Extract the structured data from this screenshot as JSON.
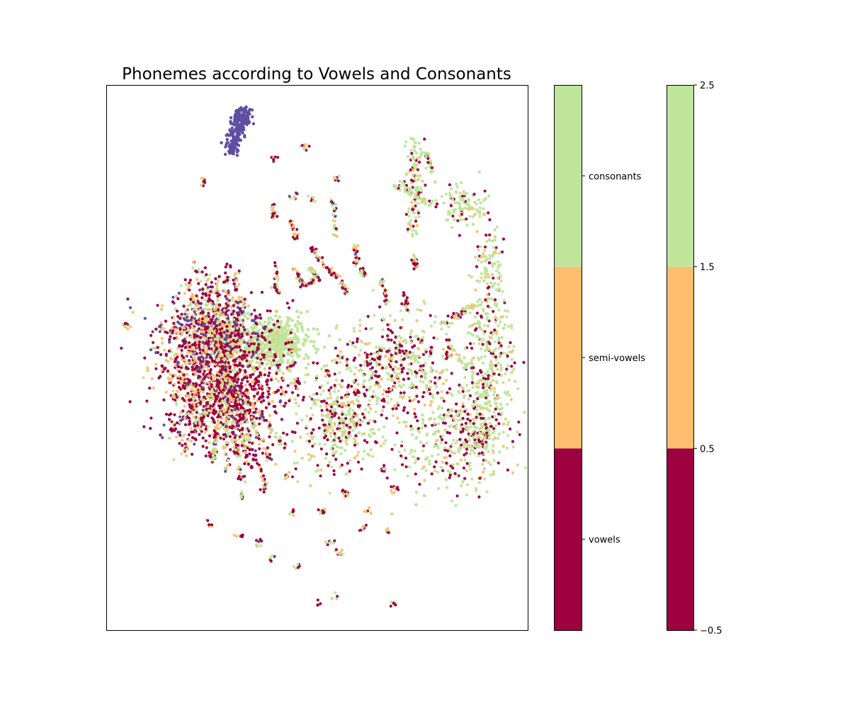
{
  "chart_data": {
    "type": "scatter",
    "title": "Phonemes according to Vowels and Consonants",
    "xlabel": "",
    "ylabel": "",
    "x_ticks_shown": false,
    "y_ticks_shown": false,
    "grid": false,
    "categories": [
      "vowels",
      "semi-vowels",
      "consonants"
    ],
    "colors": {
      "vowels": "#9e0142",
      "semi-vowels": "#fdbf6f",
      "consonants": "#bfe59b",
      "unlabeled": "#5e4fa2"
    },
    "colorbar_1": {
      "tick_labels": [
        "vowels",
        "semi-vowels",
        "consonants"
      ]
    },
    "colorbar_2": {
      "range": [
        -0.5,
        2.5
      ],
      "boundaries": [
        -0.5,
        0.5,
        1.5,
        2.5
      ],
      "tick_labels": [
        "−0.5",
        "0.5",
        "1.5",
        "2.5"
      ]
    }
  }
}
